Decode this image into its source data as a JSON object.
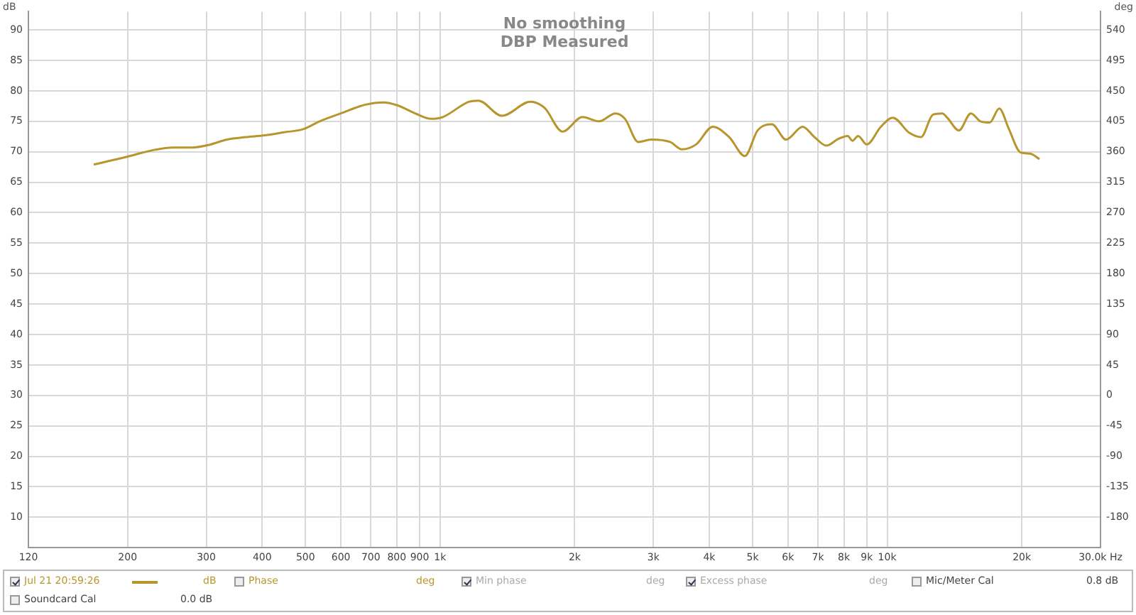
{
  "chart_data": {
    "type": "line",
    "title": "No smoothing",
    "subtitle": "DBP Measured",
    "ylabel": "dB",
    "y2label": "deg",
    "log": "x",
    "grid": true,
    "legend": "bottom",
    "marker": "none",
    "line_style": "solid",
    "xlim": [
      120,
      30000
    ],
    "xticks": [
      120,
      200,
      300,
      400,
      500,
      600,
      700,
      800,
      900,
      {
        "value": 1000,
        "label": "1k"
      },
      {
        "value": 2000,
        "label": "2k"
      },
      {
        "value": 3000,
        "label": "3k"
      },
      {
        "value": 4000,
        "label": "4k"
      },
      {
        "value": 5000,
        "label": "5k"
      },
      {
        "value": 6000,
        "label": "6k"
      },
      {
        "value": 7000,
        "label": "7k"
      },
      {
        "value": 8000,
        "label": "8k"
      },
      {
        "value": 9000,
        "label": "9k"
      },
      {
        "value": 10000,
        "label": "10k"
      },
      {
        "value": 20000,
        "label": "20k"
      },
      {
        "value": 30000,
        "label": "30.0k Hz"
      }
    ],
    "ylim": [
      5,
      93
    ],
    "yticks": [
      10,
      15,
      20,
      25,
      30,
      35,
      40,
      45,
      50,
      55,
      60,
      65,
      70,
      75,
      80,
      85,
      90
    ],
    "y2lim": [
      -225,
      567
    ],
    "y2ticks": [
      -180,
      -135,
      -90,
      -45,
      0,
      45,
      90,
      135,
      180,
      225,
      270,
      315,
      360,
      405,
      450,
      495,
      540
    ],
    "series": [
      {
        "name": "Jul 21 20:59:26",
        "color": "#b8962e",
        "x": [
          168,
          200,
          229,
          253,
          279,
          303,
          334,
          368,
          406,
          448,
          494,
          538,
          600,
          678,
          747,
          804,
          886,
          954,
          1014,
          1159,
          1218,
          1375,
          1592,
          1713,
          1879,
          2082,
          2268,
          2468,
          2592,
          2775,
          2965,
          3270,
          3473,
          3738,
          4074,
          4433,
          4805,
          5132,
          5524,
          5942,
          6470,
          6878,
          7310,
          7770,
          8160,
          8360,
          8610,
          9000,
          9680,
          10290,
          11210,
          11900,
          12660,
          13280,
          13620,
          14470,
          15390,
          16160,
          16960,
          17810,
          18700,
          19870,
          20870,
          21910
        ],
        "values": [
          67.9,
          69.2,
          70.3,
          70.7,
          70.7,
          71.1,
          72.0,
          72.4,
          72.7,
          73.2,
          73.7,
          75.0,
          76.3,
          77.7,
          78.1,
          77.6,
          76.2,
          75.4,
          75.7,
          78.2,
          78.4,
          75.9,
          78.2,
          77.2,
          73.3,
          75.7,
          75.0,
          76.3,
          75.4,
          71.6,
          72.0,
          71.6,
          70.4,
          71.2,
          74.1,
          72.4,
          69.3,
          73.5,
          74.5,
          72.0,
          74.1,
          72.4,
          71.0,
          72.1,
          72.6,
          71.8,
          72.6,
          71.2,
          74.1,
          75.6,
          73.1,
          72.4,
          76.1,
          76.3,
          75.6,
          73.5,
          76.3,
          75.0,
          74.8,
          77.1,
          73.8,
          69.9,
          69.7,
          68.8
        ]
      }
    ],
    "annotations": [
      "dB",
      "Phase",
      "deg",
      "Min phase",
      "deg",
      "Excess phase",
      "deg",
      "Mic/Meter Cal",
      "0.8 dB",
      "Soundcard Cal",
      "0.0 dB"
    ]
  }
}
